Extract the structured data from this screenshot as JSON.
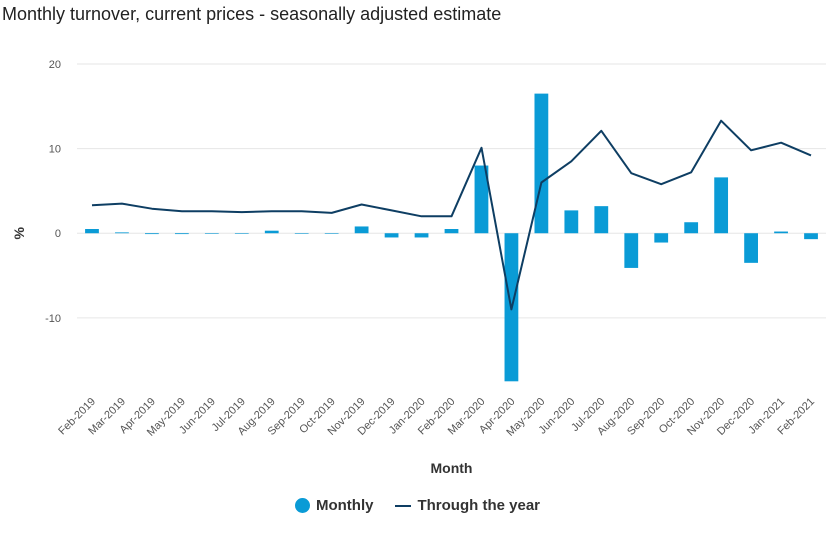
{
  "title": "Monthly turnover, current prices - seasonally adjusted estimate",
  "colors": {
    "bar": "#0a9bd6",
    "line": "#0e3e63",
    "grid": "#e6e6e6"
  },
  "chart_data": {
    "type": "bar",
    "title": "Monthly turnover, current prices - seasonally adjusted estimate",
    "xlabel": "Month",
    "ylabel": "%",
    "ylim": [
      -19,
      20
    ],
    "yticks": [
      20,
      10,
      0,
      -10
    ],
    "grid": true,
    "legend_position": "bottom",
    "categories": [
      "Feb-2019",
      "Mar-2019",
      "Apr-2019",
      "May-2019",
      "Jun-2019",
      "Jul-2019",
      "Aug-2019",
      "Sep-2019",
      "Oct-2019",
      "Nov-2019",
      "Dec-2019",
      "Jan-2020",
      "Feb-2020",
      "Mar-2020",
      "Apr-2020",
      "May-2020",
      "Jun-2020",
      "Jul-2020",
      "Aug-2020",
      "Sep-2020",
      "Oct-2020",
      "Nov-2020",
      "Dec-2020",
      "Jan-2021",
      "Feb-2021"
    ],
    "series": [
      {
        "name": "Monthly",
        "type": "bar",
        "values": [
          0.5,
          0.1,
          -0.1,
          -0.1,
          0.0,
          0.0,
          0.3,
          0.0,
          0.0,
          0.8,
          -0.5,
          -0.5,
          0.5,
          8.0,
          -17.5,
          16.5,
          2.7,
          3.2,
          -4.1,
          -1.1,
          1.3,
          6.6,
          -3.5,
          0.2,
          -0.7
        ]
      },
      {
        "name": "Through the year",
        "type": "line",
        "values": [
          3.3,
          3.5,
          2.9,
          2.6,
          2.6,
          2.5,
          2.6,
          2.6,
          2.4,
          3.4,
          2.7,
          2.0,
          2.0,
          10.1,
          -9.0,
          6.0,
          8.5,
          12.1,
          7.1,
          5.8,
          7.2,
          13.3,
          9.8,
          10.7,
          9.2
        ]
      }
    ]
  },
  "legend": {
    "monthly": "Monthly",
    "through_the_year": "Through the year"
  }
}
